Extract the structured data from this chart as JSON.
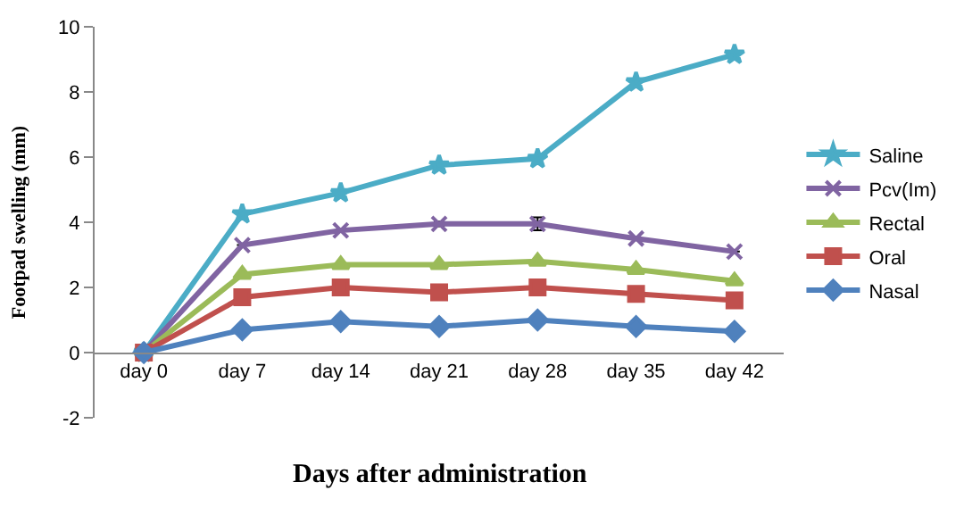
{
  "chart_data": {
    "type": "line",
    "xlabel": "Days after administration",
    "ylabel": "Footpad swelling (mm)",
    "categories": [
      "day 0",
      "day 7",
      "day 14",
      "day 21",
      "day 28",
      "day 35",
      "day 42"
    ],
    "series": [
      {
        "name": "Saline",
        "color": "#4bacc6",
        "marker": "star",
        "values": [
          0,
          4.25,
          4.9,
          5.75,
          5.95,
          8.3,
          9.15
        ]
      },
      {
        "name": "Pcv(Im)",
        "color": "#8064a2",
        "marker": "cross",
        "values": [
          0,
          3.3,
          3.75,
          3.95,
          3.95,
          3.5,
          3.1
        ],
        "errors": [
          null,
          null,
          null,
          0.07,
          0.2,
          null,
          null
        ]
      },
      {
        "name": "Rectal",
        "color": "#9bbb59",
        "marker": "triangle",
        "values": [
          0,
          2.4,
          2.7,
          2.7,
          2.8,
          2.55,
          2.2
        ]
      },
      {
        "name": "Oral",
        "color": "#c0504d",
        "marker": "square",
        "values": [
          0,
          1.7,
          2.0,
          1.85,
          2.0,
          1.8,
          1.6
        ]
      },
      {
        "name": "Nasal",
        "color": "#4f81bd",
        "marker": "diamond",
        "values": [
          0,
          0.7,
          0.95,
          0.8,
          1.0,
          0.8,
          0.65
        ]
      }
    ],
    "ylim": [
      -2,
      10
    ],
    "yticks": [
      -2,
      0,
      2,
      4,
      6,
      8,
      10
    ],
    "legend": "right",
    "line_style": "solid"
  }
}
